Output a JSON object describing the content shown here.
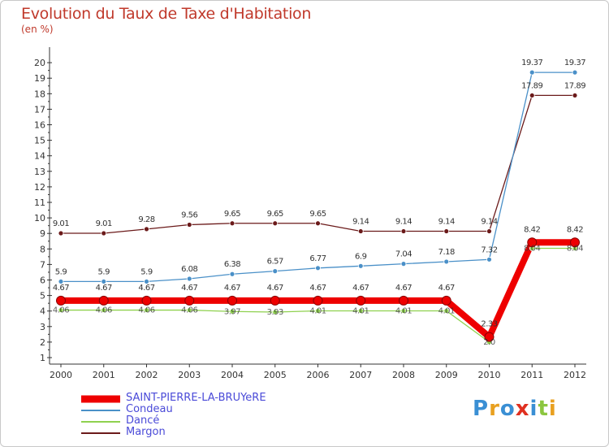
{
  "title": "Evolution du Taux de Taxe d'Habitation",
  "subtitle": "(en %)",
  "logo": {
    "letters": [
      {
        "ch": "P",
        "color": "#3a8fd4"
      },
      {
        "ch": "r",
        "color": "#e8a020"
      },
      {
        "ch": "o",
        "color": "#3a8fd4"
      },
      {
        "ch": "x",
        "color": "#e03020"
      },
      {
        "ch": "i",
        "color": "#3a8fd4"
      },
      {
        "ch": "t",
        "color": "#8cc63f"
      },
      {
        "ch": "i",
        "color": "#e8a020"
      }
    ]
  },
  "chart_data": {
    "type": "line",
    "title": "Evolution du Taux de Taxe d'Habitation",
    "subtitle": "(en %)",
    "xlabel": "",
    "ylabel": "",
    "ylim": [
      0,
      20
    ],
    "yticks": [
      1,
      2,
      3,
      4,
      5,
      6,
      7,
      8,
      9,
      10,
      11,
      12,
      13,
      14,
      15,
      16,
      17,
      18,
      19,
      20
    ],
    "categories": [
      "2000",
      "2001",
      "2002",
      "2003",
      "2004",
      "2005",
      "2006",
      "2007",
      "2008",
      "2009",
      "2010",
      "2011",
      "2012"
    ],
    "grid": false,
    "legend_position": "bottom-left",
    "series": [
      {
        "name": "Margon",
        "color": "#6b1a1a",
        "values": [
          9.01,
          9.01,
          9.28,
          9.56,
          9.65,
          9.65,
          9.65,
          9.14,
          9.14,
          9.14,
          9.14,
          17.89,
          17.89
        ],
        "labels": [
          "9.01",
          "9.01",
          "9.28",
          "9.56",
          "9.65",
          "9.65",
          "9.65",
          "9.14",
          "9.14",
          "9.14",
          "9.14",
          "17.89",
          "17.89"
        ]
      },
      {
        "name": "Condeau",
        "color": "#4a90c8",
        "values": [
          5.9,
          5.9,
          5.9,
          6.08,
          6.38,
          6.57,
          6.77,
          6.9,
          7.04,
          7.18,
          7.32,
          19.37,
          19.37
        ],
        "labels": [
          "5.9",
          "5.9",
          "5.9",
          "6.08",
          "6.38",
          "6.57",
          "6.77",
          "6.9",
          "7.04",
          "7.18",
          "7.32",
          "19.37",
          "19.37"
        ]
      },
      {
        "name": "Dancé",
        "color": "#8fd14f",
        "values": [
          4.06,
          4.06,
          4.06,
          4.06,
          3.97,
          3.93,
          4.01,
          4.01,
          4.01,
          4.01,
          2.0,
          8.04,
          8.04
        ],
        "labels": [
          "4.06",
          "4.06",
          "4.06",
          "4.06",
          "3.97",
          "3.93",
          "4.01",
          "4.01",
          "4.01",
          "4.01",
          "2.0",
          "8.04",
          "8.04"
        ]
      },
      {
        "name": "SAINT-PIERRE-LA-BRUYeRE",
        "color": "#ee0000",
        "values": [
          4.67,
          4.67,
          4.67,
          4.67,
          4.67,
          4.67,
          4.67,
          4.67,
          4.67,
          4.67,
          2.33,
          8.42,
          8.42
        ],
        "labels": [
          "4.67",
          "4.67",
          "4.67",
          "4.67",
          "4.67",
          "4.67",
          "4.67",
          "4.67",
          "4.67",
          "4.67",
          "2.33",
          "8.42",
          "8.42"
        ]
      }
    ]
  },
  "legend": {
    "items": [
      {
        "label": "SAINT-PIERRE-LA-BRUYeRE",
        "color": "#ee0000",
        "thick": true
      },
      {
        "label": "Condeau",
        "color": "#4a90c8",
        "thick": false
      },
      {
        "label": "Dancé",
        "color": "#8fd14f",
        "thick": false
      },
      {
        "label": "Margon",
        "color": "#6b1a1a",
        "thick": false
      }
    ]
  }
}
